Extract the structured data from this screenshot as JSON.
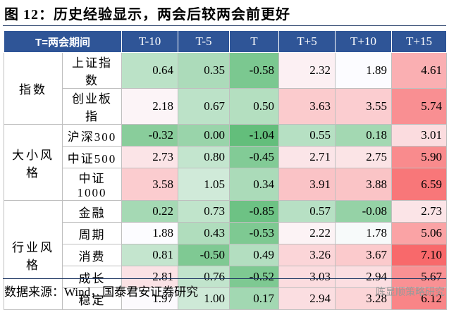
{
  "title": "图 12：历史经验显示，两会后较两会前更好",
  "table": {
    "header": [
      "T=两会期间",
      "T-10",
      "T-5",
      "T",
      "T+5",
      "T+10",
      "T+15"
    ],
    "groups": [
      {
        "label": "指数",
        "rows": [
          {
            "name": "上证指数",
            "values": [
              "0.64",
              "0.35",
              "-0.58",
              "2.32",
              "1.89",
              "4.61"
            ]
          },
          {
            "name": "创业板指",
            "values": [
              "2.18",
              "0.67",
              "0.50",
              "3.63",
              "3.55",
              "5.74"
            ]
          }
        ]
      },
      {
        "label": "大小风格",
        "rows": [
          {
            "name": "沪深300",
            "values": [
              "-0.32",
              "0.00",
              "-1.04",
              "0.55",
              "0.18",
              "3.01"
            ]
          },
          {
            "name": "中证500",
            "values": [
              "2.73",
              "0.80",
              "-0.45",
              "2.71",
              "2.75",
              "5.90"
            ]
          },
          {
            "name": "中证1000",
            "values": [
              "3.58",
              "1.05",
              "0.34",
              "3.91",
              "3.88",
              "6.59"
            ]
          }
        ]
      },
      {
        "label": "行业风格",
        "rows": [
          {
            "name": "金融",
            "values": [
              "0.22",
              "0.73",
              "-0.85",
              "0.57",
              "-0.08",
              "2.73"
            ]
          },
          {
            "name": "周期",
            "values": [
              "1.88",
              "0.43",
              "-0.53",
              "2.22",
              "1.78",
              "5.06"
            ]
          },
          {
            "name": "消费",
            "values": [
              "0.81",
              "-0.50",
              "0.49",
              "3.26",
              "3.67",
              "7.10"
            ]
          },
          {
            "name": "成长",
            "values": [
              "2.81",
              "0.76",
              "-0.52",
              "3.03",
              "2.94",
              "5.67"
            ]
          },
          {
            "name": "稳定",
            "values": [
              "1.97",
              "1.00",
              "0.17",
              "2.94",
              "3.28",
              "6.12"
            ]
          }
        ]
      }
    ]
  },
  "source": "数据来源：Wind，国泰君安证券研究",
  "watermark": "陈显顺策略研究"
}
